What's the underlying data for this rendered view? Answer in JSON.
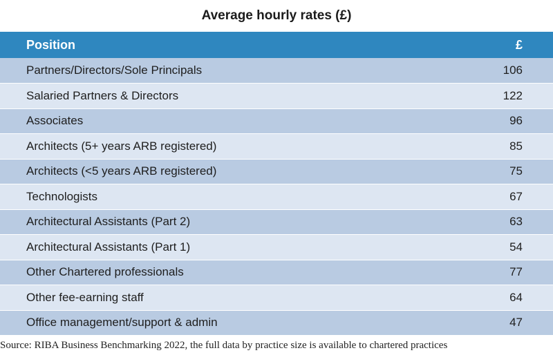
{
  "title": "Average hourly rates (£)",
  "header": {
    "position": "Position",
    "value": "£"
  },
  "rows": [
    {
      "position": "Partners/Directors/Sole Principals",
      "value": "106"
    },
    {
      "position": "Salaried Partners & Directors",
      "value": "122"
    },
    {
      "position": "Associates",
      "value": "96"
    },
    {
      "position": "Architects (5+ years ARB registered)",
      "value": "85"
    },
    {
      "position": "Architects (<5 years ARB registered)",
      "value": "75"
    },
    {
      "position": "Technologists",
      "value": "67"
    },
    {
      "position": "Architectural Assistants (Part 2)",
      "value": "63"
    },
    {
      "position": "Architectural Assistants (Part 1)",
      "value": "54"
    },
    {
      "position": "Other Chartered professionals",
      "value": "77"
    },
    {
      "position": "Other fee-earning staff",
      "value": "64"
    },
    {
      "position": "Office management/support & admin",
      "value": "47"
    }
  ],
  "source": "Source: RIBA Business Benchmarking  2022, the full data by practice size is available to chartered practices",
  "colors": {
    "header_bg": "#2f87bf",
    "row_dark": "#b9cbe2",
    "row_light": "#dde6f2"
  }
}
